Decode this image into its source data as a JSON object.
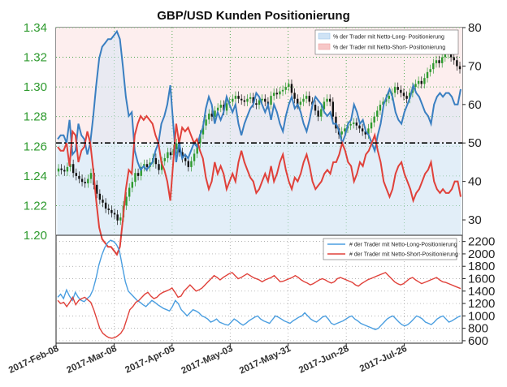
{
  "chart_data": [
    {
      "type": "candlestick_with_area",
      "title": "GBP/USD Kunden Positionierung",
      "left_axis": {
        "ticks": [
          "1.34",
          "1.32",
          "1.30",
          "1.28",
          "1.26",
          "1.24",
          "1.22",
          "1.20"
        ],
        "range": [
          1.2,
          1.34
        ],
        "color": "#2e9a2e"
      },
      "right_axis": {
        "ticks": [
          "80",
          "70",
          "60",
          "50",
          "40",
          "30"
        ],
        "range": [
          26,
          80
        ]
      },
      "reference_line": 50,
      "legend": [
        {
          "label": "% der Trader mit Netto-Long- Positionierung",
          "color": "#9ec6ea"
        },
        {
          "label": "% der Trader mit Netto-Short- Positionierung",
          "color": "#f0a0a0"
        }
      ],
      "series": [
        {
          "name": "% der Trader mit Netto-Long- Positionierung",
          "color": "#3a7fc1",
          "values": [
            51,
            52,
            52,
            50,
            56,
            47,
            48,
            55,
            52,
            51,
            47,
            50,
            57,
            65,
            72,
            75,
            76,
            77,
            77,
            78,
            79,
            77,
            70,
            62,
            57,
            58,
            48,
            45,
            43,
            44,
            43,
            44,
            45,
            48,
            50,
            55,
            57,
            60,
            65,
            55,
            45,
            50,
            46,
            47,
            46,
            48,
            50,
            49,
            52,
            54,
            59,
            62,
            60,
            55,
            58,
            56,
            58,
            62,
            60,
            58,
            60,
            55,
            52,
            55,
            57,
            59,
            60,
            63,
            62,
            60,
            58,
            60,
            56,
            60,
            58,
            55,
            53,
            57,
            60,
            62,
            59,
            60,
            58,
            55,
            53,
            56,
            60,
            62,
            61,
            60,
            58,
            57,
            58,
            55,
            55,
            53,
            50,
            52,
            55,
            56,
            60,
            58,
            55,
            56,
            53,
            52,
            50,
            48,
            52,
            55,
            60,
            62,
            64,
            62,
            58,
            56,
            55,
            58,
            60,
            62,
            65,
            63,
            62,
            60,
            58,
            57,
            55,
            60,
            62,
            63,
            62,
            63,
            63,
            62,
            60,
            60,
            64
          ]
        },
        {
          "name": "% der Trader mit Netto-Short- Positionierung",
          "color": "#e0413a",
          "values": [
            49,
            48,
            48,
            50,
            44,
            53,
            52,
            45,
            48,
            49,
            53,
            50,
            43,
            35,
            28,
            25,
            24,
            23,
            23,
            22,
            21,
            23,
            30,
            38,
            43,
            42,
            52,
            55,
            57,
            56,
            57,
            56,
            55,
            52,
            50,
            45,
            43,
            40,
            35,
            45,
            55,
            50,
            54,
            53,
            54,
            52,
            50,
            51,
            48,
            46,
            41,
            38,
            40,
            45,
            42,
            44,
            42,
            38,
            40,
            42,
            40,
            45,
            48,
            45,
            43,
            41,
            40,
            37,
            38,
            40,
            42,
            40,
            44,
            40,
            42,
            45,
            47,
            43,
            40,
            38,
            41,
            40,
            42,
            45,
            47,
            44,
            40,
            38,
            39,
            40,
            42,
            43,
            42,
            45,
            45,
            47,
            50,
            48,
            45,
            44,
            40,
            42,
            45,
            44,
            47,
            48,
            50,
            52,
            48,
            45,
            40,
            38,
            36,
            38,
            42,
            44,
            45,
            42,
            40,
            38,
            35,
            37,
            38,
            40,
            42,
            43,
            45,
            40,
            38,
            37,
            38,
            37,
            37,
            38,
            40,
            40,
            36
          ]
        }
      ],
      "price_series": {
        "name": "GBP/USD",
        "close": [
          1.245,
          1.244,
          1.243,
          1.246,
          1.248,
          1.242,
          1.24,
          1.238,
          1.236,
          1.235,
          1.238,
          1.242,
          1.234,
          1.228,
          1.224,
          1.222,
          1.218,
          1.217,
          1.215,
          1.214,
          1.21,
          1.212,
          1.22,
          1.226,
          1.232,
          1.236,
          1.242,
          1.24,
          1.246,
          1.248,
          1.246,
          1.249,
          1.252,
          1.248,
          1.244,
          1.25,
          1.252,
          1.256,
          1.254,
          1.258,
          1.262,
          1.256,
          1.252,
          1.25,
          1.246,
          1.25,
          1.255,
          1.262,
          1.268,
          1.274,
          1.278,
          1.282,
          1.28,
          1.284,
          1.286,
          1.288,
          1.284,
          1.289,
          1.29,
          1.292,
          1.294,
          1.292,
          1.291,
          1.29,
          1.292,
          1.293,
          1.289,
          1.288,
          1.291,
          1.292,
          1.29,
          1.288,
          1.294,
          1.296,
          1.295,
          1.297,
          1.298,
          1.3,
          1.302,
          1.296,
          1.292,
          1.288,
          1.29,
          1.292,
          1.294,
          1.29,
          1.288,
          1.284,
          1.28,
          1.285,
          1.29,
          1.292,
          1.29,
          1.28,
          1.272,
          1.268,
          1.27,
          1.272,
          1.274,
          1.275,
          1.276,
          1.274,
          1.272,
          1.27,
          1.268,
          1.272,
          1.276,
          1.28,
          1.284,
          1.288,
          1.29,
          1.292,
          1.294,
          1.296,
          1.3,
          1.298,
          1.296,
          1.294,
          1.292,
          1.296,
          1.3,
          1.302,
          1.304,
          1.302,
          1.306,
          1.31,
          1.312,
          1.316,
          1.318,
          1.316,
          1.32,
          1.322,
          1.324,
          1.32,
          1.318,
          1.314,
          1.312
        ]
      },
      "x_ticks": []
    },
    {
      "type": "line",
      "right_axis": {
        "ticks": [
          "2200",
          "2000",
          "1800",
          "1600",
          "1400",
          "1200",
          "1000",
          "800",
          "600"
        ],
        "range": [
          560,
          2300
        ]
      },
      "x_ticks": [
        "2017-Feb-08",
        "2017-Mar-08",
        "2017-Apr-05",
        "2017-May-03",
        "2017-May-31",
        "2017-Jun-28",
        "2017-Jul-26"
      ],
      "legend": [
        {
          "label": "# der Trader mit Netto-Long-Positionierung",
          "color": "#4a9ee0"
        },
        {
          "label": "# der Trader mit Netto-Short-Positionierung",
          "color": "#e0413a"
        }
      ],
      "series": [
        {
          "name": "# der Trader mit Netto-Long-Positionierung",
          "color": "#4a9ee0",
          "values": [
            1300,
            1350,
            1280,
            1420,
            1320,
            1250,
            1380,
            1300,
            1250,
            1230,
            1280,
            1320,
            1420,
            1600,
            1820,
            1980,
            2100,
            2180,
            2220,
            2200,
            2150,
            2050,
            1800,
            1550,
            1400,
            1350,
            1300,
            1250,
            1220,
            1180,
            1150,
            1200,
            1250,
            1220,
            1180,
            1150,
            1120,
            1100,
            1080,
            1150,
            1250,
            1200,
            1100,
            1050,
            1000,
            1050,
            1100,
            1080,
            1050,
            1000,
            980,
            950,
            900,
            920,
            950,
            900,
            880,
            860,
            850,
            900,
            950,
            920,
            880,
            850,
            880,
            920,
            950,
            980,
            1000,
            950,
            920,
            900,
            880,
            940,
            1000,
            980,
            950,
            920,
            900,
            880,
            920,
            950,
            980,
            1000,
            1050,
            1000,
            950,
            920,
            900,
            940,
            980,
            1000,
            950,
            880,
            860,
            880,
            900,
            920,
            950,
            980,
            1000,
            950,
            920,
            880,
            860,
            840,
            820,
            800,
            780,
            800,
            850,
            900,
            950,
            980,
            1000,
            950,
            900,
            860,
            840,
            860,
            900,
            950,
            1000,
            980,
            950,
            900,
            880,
            860,
            900,
            950,
            980,
            1000,
            950,
            900,
            920,
            950,
            980,
            1000
          ]
        },
        {
          "name": "# der Trader mit Netto-Short-Positionierung",
          "color": "#e0413a",
          "values": [
            1250,
            1200,
            1220,
            1150,
            1220,
            1300,
            1180,
            1250,
            1280,
            1300,
            1260,
            1220,
            1100,
            950,
            800,
            720,
            680,
            650,
            640,
            650,
            680,
            720,
            800,
            950,
            1100,
            1150,
            1220,
            1250,
            1300,
            1350,
            1380,
            1320,
            1280,
            1300,
            1350,
            1380,
            1400,
            1420,
            1450,
            1380,
            1300,
            1320,
            1400,
            1450,
            1500,
            1450,
            1400,
            1420,
            1450,
            1500,
            1550,
            1600,
            1650,
            1620,
            1580,
            1620,
            1650,
            1680,
            1700,
            1650,
            1600,
            1620,
            1650,
            1680,
            1650,
            1620,
            1600,
            1580,
            1550,
            1580,
            1600,
            1620,
            1650,
            1600,
            1550,
            1560,
            1580,
            1600,
            1620,
            1650,
            1620,
            1580,
            1550,
            1530,
            1500,
            1520,
            1550,
            1580,
            1600,
            1580,
            1550,
            1530,
            1550,
            1600,
            1620,
            1600,
            1580,
            1560,
            1540,
            1500,
            1480,
            1520,
            1550,
            1580,
            1600,
            1620,
            1640,
            1660,
            1680,
            1700,
            1650,
            1600,
            1550,
            1520,
            1500,
            1520,
            1560,
            1600,
            1620,
            1580,
            1550,
            1520,
            1540,
            1560,
            1580,
            1600,
            1620,
            1580,
            1550,
            1540,
            1520,
            1500,
            1480,
            1460,
            1440
          ]
        }
      ]
    }
  ]
}
